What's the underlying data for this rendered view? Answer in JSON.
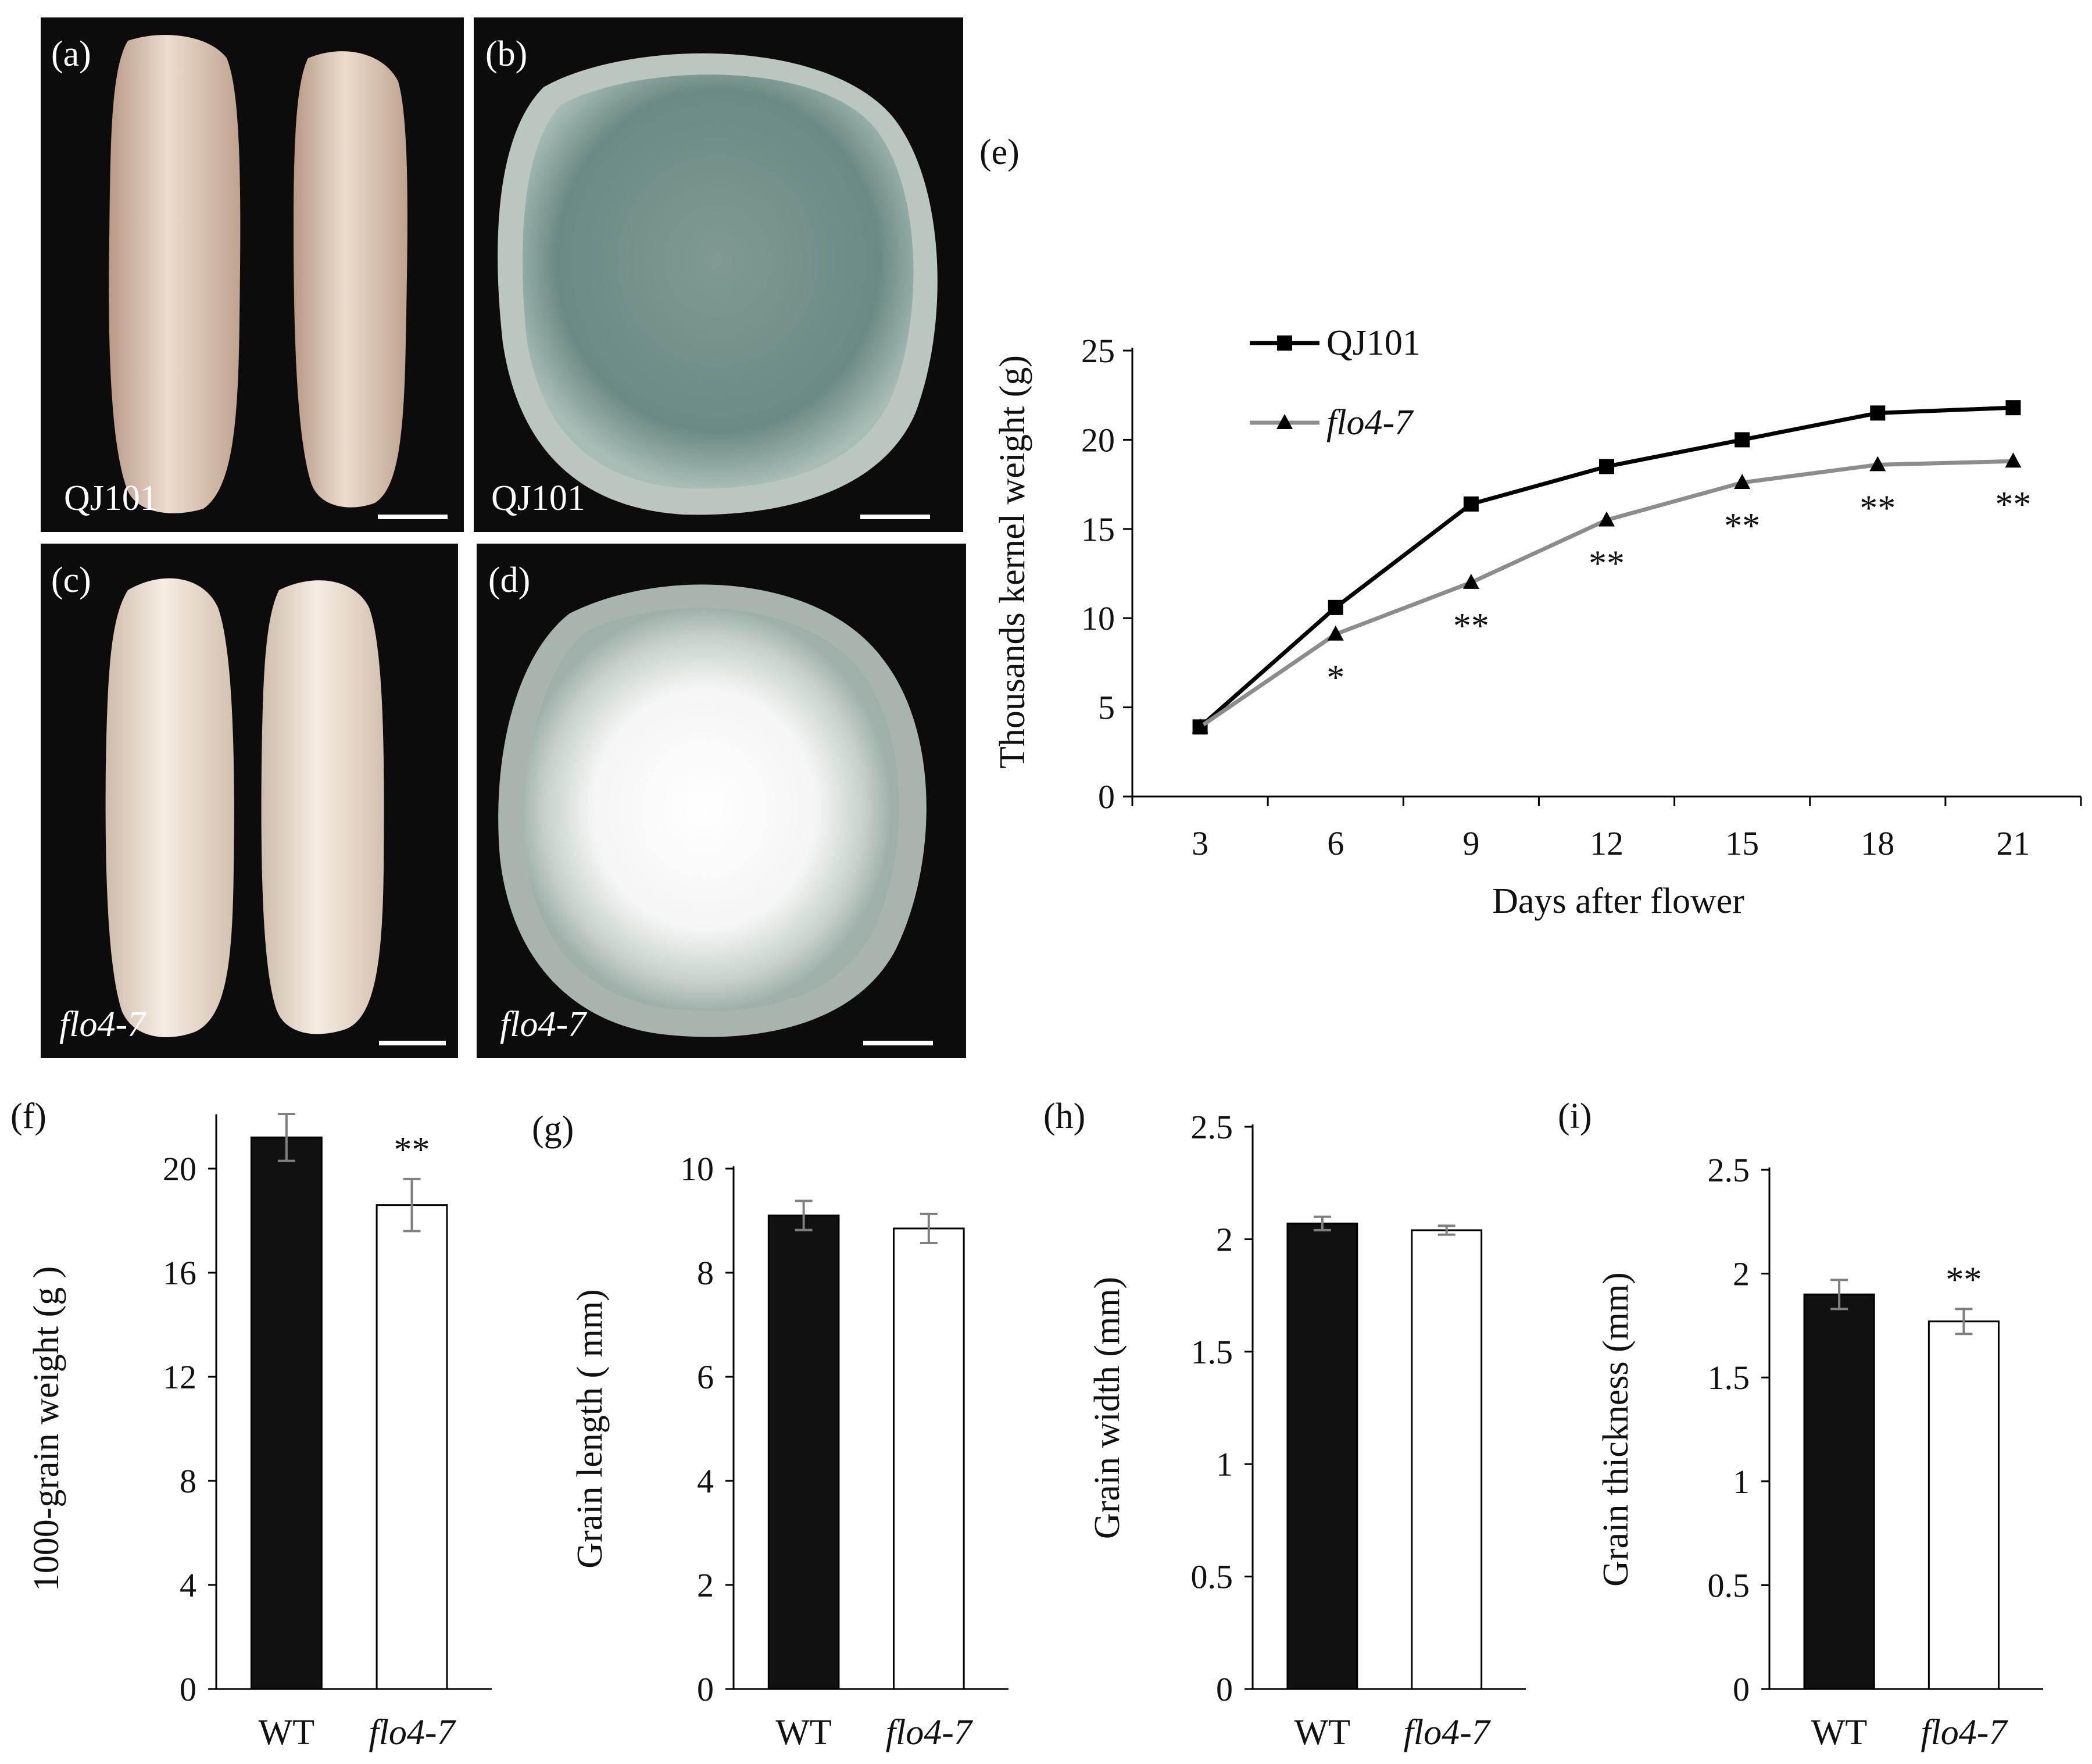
{
  "panels": {
    "a": {
      "letter": "(a)",
      "caption": "QJ101"
    },
    "b": {
      "letter": "(b)",
      "caption": "QJ101"
    },
    "c": {
      "letter": "(c)",
      "caption": "flo4-7"
    },
    "d": {
      "letter": "(d)",
      "caption": "flo4-7"
    }
  },
  "colors": {
    "qj101_line": "#000000",
    "flo_line": "#8c8c8c",
    "wt_bar": "#111111",
    "mutant_bar": "#ffffff",
    "error_bar": "#7f7f7f"
  },
  "chart_data": [
    {
      "id": "e",
      "panel_label": "(e)",
      "type": "line",
      "xlabel": "Days after flower",
      "ylabel": "Thousands kernel weight (g)",
      "x": [
        3,
        6,
        9,
        12,
        15,
        18,
        21
      ],
      "ylim": [
        0,
        25
      ],
      "yticks": [
        0,
        5,
        10,
        15,
        20,
        25
      ],
      "legend_position": "top-left",
      "series": [
        {
          "name": "QJ101",
          "marker": "square",
          "values": [
            3.9,
            10.6,
            16.4,
            18.5,
            20.0,
            21.5,
            21.8
          ]
        },
        {
          "name": "flo4-7",
          "marker": "triangle",
          "values": [
            3.9,
            9.1,
            12.0,
            15.5,
            17.6,
            18.6,
            18.8
          ],
          "significance": [
            "",
            "*",
            "**",
            "**",
            "**",
            "**",
            "**"
          ]
        }
      ]
    },
    {
      "id": "f",
      "panel_label": "(f)",
      "type": "bar",
      "ylabel": "1000-grain weight (g )",
      "categories": [
        "WT",
        "flo4-7"
      ],
      "values": [
        21.2,
        18.6
      ],
      "errors": [
        0.9,
        1.0
      ],
      "significance": [
        "",
        "**"
      ],
      "ylim": [
        0,
        22
      ],
      "yticks": [
        0,
        4,
        8,
        12,
        16,
        20
      ]
    },
    {
      "id": "g",
      "panel_label": "(g)",
      "type": "bar",
      "ylabel": "Grain length ( mm)",
      "categories": [
        "WT",
        "flo4-7"
      ],
      "values": [
        9.1,
        8.85
      ],
      "errors": [
        0.28,
        0.28
      ],
      "significance": [
        "",
        ""
      ],
      "ylim": [
        0,
        10
      ],
      "yticks": [
        0,
        2,
        4,
        6,
        8,
        10
      ]
    },
    {
      "id": "h",
      "panel_label": "(h)",
      "type": "bar",
      "ylabel": "Grain width (mm)",
      "categories": [
        "WT",
        "flo4-7"
      ],
      "values": [
        2.07,
        2.04
      ],
      "errors": [
        0.03,
        0.02
      ],
      "significance": [
        "",
        ""
      ],
      "ylim": [
        0,
        2.5
      ],
      "yticks": [
        0,
        0.5,
        1,
        1.5,
        2,
        2.5
      ]
    },
    {
      "id": "i",
      "panel_label": "(i)",
      "type": "bar",
      "ylabel": "Grain thickness (mm)",
      "categories": [
        "WT",
        "flo4-7"
      ],
      "values": [
        1.9,
        1.77
      ],
      "errors": [
        0.07,
        0.06
      ],
      "significance": [
        "",
        "**"
      ],
      "ylim": [
        0,
        2.5
      ],
      "yticks": [
        0,
        0.5,
        1,
        1.5,
        2,
        2.5
      ]
    }
  ]
}
